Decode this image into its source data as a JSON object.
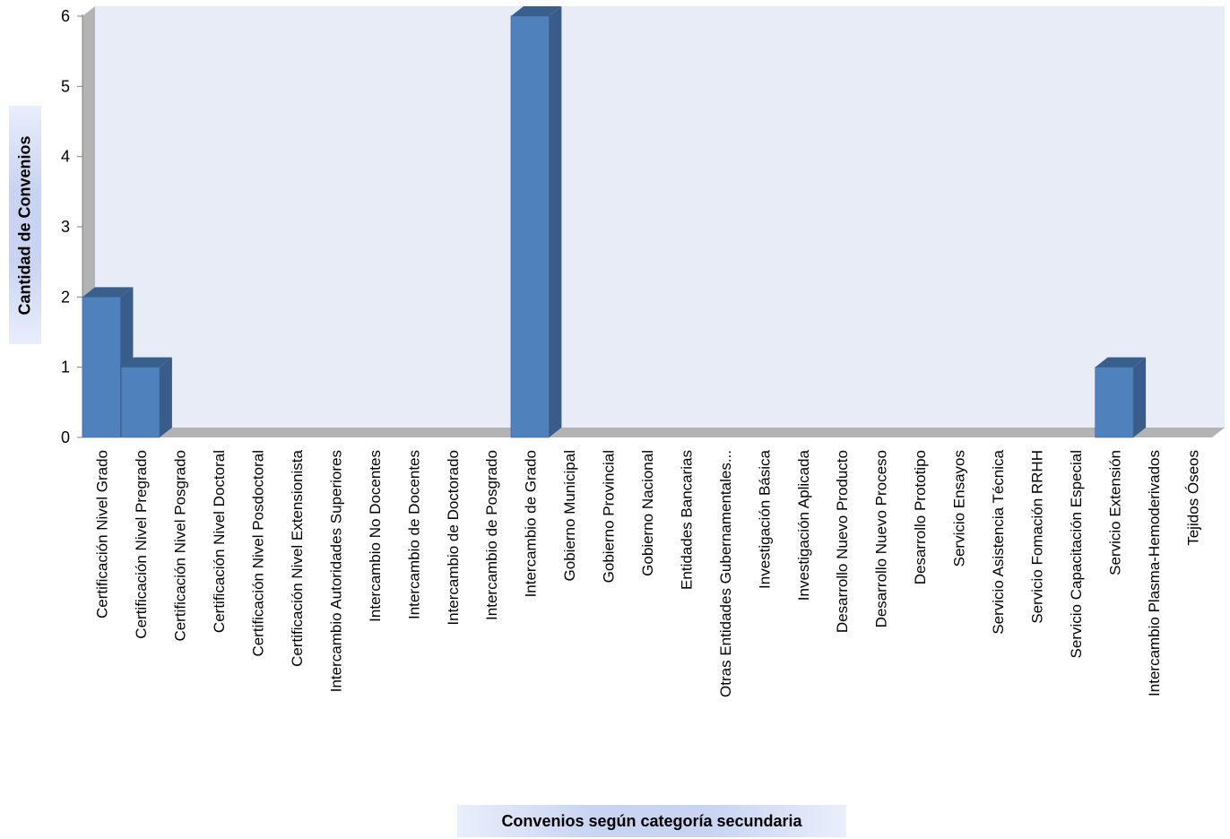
{
  "chart_data": {
    "type": "bar",
    "title": "",
    "xlabel": "Convenios según categoría secundaria",
    "ylabel": "Cantidad de Convenios",
    "ylim": [
      0,
      6
    ],
    "yticks": [
      "0",
      "1",
      "2",
      "3",
      "4",
      "5",
      "6"
    ],
    "grid": false,
    "legend": "none",
    "categories": [
      "Certificación Nivel Grado",
      "Certificación Nivel Pregrado",
      "Certificación Nivel Posgrado",
      "Certificación Nivel Doctoral",
      "Certificación Nivel Posdoctoral",
      "Certificación Nivel Extensionista",
      "Intercambio Autoridades Superiores",
      "Intercambio No Docentes",
      "Intercambio de Docentes",
      "Intercambio de Doctorado",
      "Intercambio de Posgrado",
      "Intercambio de Grado",
      "Gobierno Municipal",
      "Gobierno Provincial",
      "Gobierno Nacional",
      "Entidades Bancarias",
      "Otras Entidades Gubernamentales...",
      "Investigación Básica",
      "Investigación Aplicada",
      "Desarrollo Nuevo Producto",
      "Desarrollo Nuevo Proceso",
      "Desarrollo Prototipo",
      "Servicio Ensayos",
      "Servicio Asistencia Técnica",
      "Servicio Fomación RRHH",
      "Servicio Capacitación Especial",
      "Servicio Extensión",
      "Intercambio Plasma-Hemoderivados",
      "Tejidos Óseos"
    ],
    "values": [
      2,
      1,
      0,
      0,
      0,
      0,
      0,
      0,
      0,
      0,
      0,
      6,
      0,
      0,
      0,
      0,
      0,
      0,
      0,
      0,
      0,
      0,
      0,
      0,
      0,
      0,
      1,
      0,
      0
    ],
    "colors": {
      "bar_front": "#4f81bd",
      "bar_side": "#385d8a",
      "bar_top": "#3a5f8d",
      "plot_back": "#e8ecf6",
      "wall": "#b3b3b3",
      "floor": "#b3b3b3"
    }
  }
}
